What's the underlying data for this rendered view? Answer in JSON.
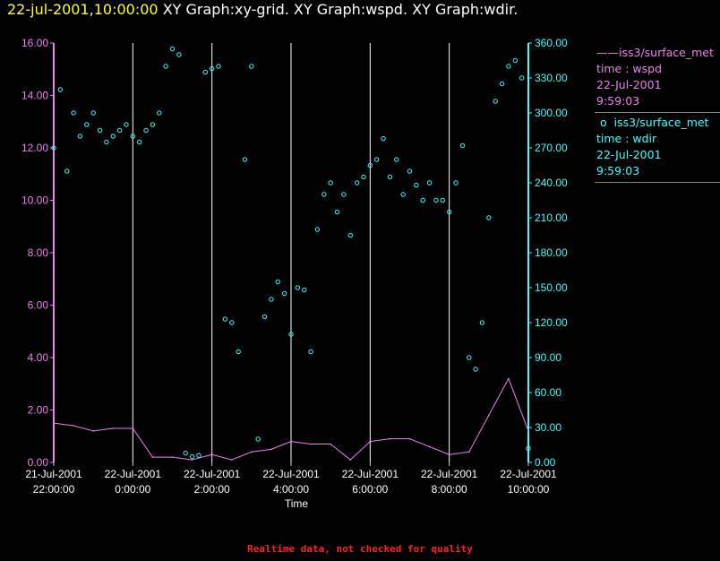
{
  "header": {
    "timestamp": "22-jul-2001,10:00:00",
    "graphs": " XY Graph:xy-grid.  XY Graph:wspd.  XY Graph:wdir."
  },
  "legend": {
    "wspd": {
      "source": "iss3/surface_met",
      "field": "time : wspd",
      "date": "22-Jul-2001",
      "time": "9:59:03"
    },
    "wdir": {
      "source": "iss3/surface_met",
      "field": "time : wdir",
      "date": "22-Jul-2001",
      "time": "9:59:03"
    }
  },
  "footer": "Realtime data, not checked for quality",
  "colors": {
    "wspd": "#ee82ee",
    "wdir": "#40ffff",
    "grid": "#ffffff",
    "timestamp": "#ffff33",
    "warning": "#ff2020"
  },
  "chart_data": {
    "type": "line+scatter",
    "xlabel": "Time",
    "x_range_hours": [
      22,
      34
    ],
    "x_ticks": [
      {
        "date": "21-Jul-2001",
        "time": "22:00:00"
      },
      {
        "date": "22-Jul-2001",
        "time": "0:00:00"
      },
      {
        "date": "22-Jul-2001",
        "time": "2:00:00"
      },
      {
        "date": "22-Jul-2001",
        "time": "4:00:00"
      },
      {
        "date": "22-Jul-2001",
        "time": "6:00:00"
      },
      {
        "date": "22-Jul-2001",
        "time": "8:00:00"
      },
      {
        "date": "22-Jul-2001",
        "time": "10:00:00"
      }
    ],
    "y_left": {
      "range": [
        0,
        16
      ],
      "ticks": [
        "0.00",
        "2.00",
        "4.00",
        "6.00",
        "8.00",
        "10.00",
        "12.00",
        "14.00",
        "16.00"
      ]
    },
    "y_right": {
      "range": [
        0,
        360
      ],
      "ticks": [
        "0.00",
        "30.00",
        "60.00",
        "90.00",
        "120.00",
        "150.00",
        "180.00",
        "210.00",
        "240.00",
        "270.00",
        "300.00",
        "330.00",
        "360.00"
      ]
    },
    "grid": "vertical lines",
    "series": [
      {
        "name": "iss3/surface_met time : wspd",
        "type": "line",
        "axis": "left",
        "x": [
          "21-Jul-2001 22:00",
          "21-Jul-2001 22:30",
          "21-Jul-2001 23:00",
          "21-Jul-2001 23:30",
          "22-Jul-2001 00:00",
          "22-Jul-2001 00:30",
          "22-Jul-2001 01:00",
          "22-Jul-2001 01:30",
          "22-Jul-2001 02:00",
          "22-Jul-2001 02:30",
          "22-Jul-2001 03:00",
          "22-Jul-2001 03:30",
          "22-Jul-2001 04:00",
          "22-Jul-2001 04:30",
          "22-Jul-2001 05:00",
          "22-Jul-2001 05:30",
          "22-Jul-2001 06:00",
          "22-Jul-2001 06:30",
          "22-Jul-2001 07:00",
          "22-Jul-2001 07:30",
          "22-Jul-2001 08:00",
          "22-Jul-2001 08:30",
          "22-Jul-2001 09:00",
          "22-Jul-2001 09:30",
          "22-Jul-2001 10:00"
        ],
        "values": [
          1.5,
          1.4,
          1.2,
          1.3,
          1.3,
          0.2,
          0.2,
          0.1,
          0.3,
          0.1,
          0.4,
          0.5,
          0.8,
          0.7,
          0.7,
          0.1,
          0.8,
          0.9,
          0.9,
          0.6,
          0.3,
          0.4,
          1.8,
          3.2,
          1.2
        ]
      },
      {
        "name": "iss3/surface_met time : wdir",
        "type": "scatter",
        "axis": "right",
        "x": [
          "21-Jul-2001 22:00",
          "21-Jul-2001 22:10",
          "21-Jul-2001 22:20",
          "21-Jul-2001 22:30",
          "21-Jul-2001 22:40",
          "21-Jul-2001 22:50",
          "21-Jul-2001 23:00",
          "21-Jul-2001 23:10",
          "21-Jul-2001 23:20",
          "21-Jul-2001 23:30",
          "21-Jul-2001 23:40",
          "21-Jul-2001 23:50",
          "22-Jul-2001 00:00",
          "22-Jul-2001 00:10",
          "22-Jul-2001 00:20",
          "22-Jul-2001 00:30",
          "22-Jul-2001 00:40",
          "22-Jul-2001 00:50",
          "22-Jul-2001 01:00",
          "22-Jul-2001 01:10",
          "22-Jul-2001 01:20",
          "22-Jul-2001 01:30",
          "22-Jul-2001 01:40",
          "22-Jul-2001 01:50",
          "22-Jul-2001 02:00",
          "22-Jul-2001 02:10",
          "22-Jul-2001 02:20",
          "22-Jul-2001 02:30",
          "22-Jul-2001 02:40",
          "22-Jul-2001 02:50",
          "22-Jul-2001 03:00",
          "22-Jul-2001 03:10",
          "22-Jul-2001 03:20",
          "22-Jul-2001 03:30",
          "22-Jul-2001 03:40",
          "22-Jul-2001 03:50",
          "22-Jul-2001 04:00",
          "22-Jul-2001 04:10",
          "22-Jul-2001 04:20",
          "22-Jul-2001 04:30",
          "22-Jul-2001 04:40",
          "22-Jul-2001 04:50",
          "22-Jul-2001 05:00",
          "22-Jul-2001 05:10",
          "22-Jul-2001 05:20",
          "22-Jul-2001 05:30",
          "22-Jul-2001 05:40",
          "22-Jul-2001 05:50",
          "22-Jul-2001 06:00",
          "22-Jul-2001 06:10",
          "22-Jul-2001 06:20",
          "22-Jul-2001 06:30",
          "22-Jul-2001 06:40",
          "22-Jul-2001 06:50",
          "22-Jul-2001 07:00",
          "22-Jul-2001 07:10",
          "22-Jul-2001 07:20",
          "22-Jul-2001 07:30",
          "22-Jul-2001 07:40",
          "22-Jul-2001 07:50",
          "22-Jul-2001 08:00",
          "22-Jul-2001 08:10",
          "22-Jul-2001 08:20",
          "22-Jul-2001 08:30",
          "22-Jul-2001 08:40",
          "22-Jul-2001 08:50",
          "22-Jul-2001 09:00",
          "22-Jul-2001 09:10",
          "22-Jul-2001 09:20",
          "22-Jul-2001 09:30",
          "22-Jul-2001 09:40",
          "22-Jul-2001 09:50",
          "22-Jul-2001 10:00"
        ],
        "values": [
          270,
          320,
          250,
          300,
          280,
          290,
          300,
          285,
          275,
          280,
          285,
          290,
          280,
          275,
          285,
          290,
          300,
          340,
          355,
          350,
          8,
          5,
          6,
          335,
          338,
          340,
          123,
          120,
          95,
          260,
          340,
          20,
          125,
          140,
          155,
          145,
          110,
          150,
          148,
          95,
          200,
          230,
          240,
          215,
          230,
          195,
          240,
          245,
          255,
          260,
          278,
          245,
          260,
          230,
          250,
          238,
          225,
          240,
          225,
          225,
          215,
          240,
          272,
          90,
          80,
          120,
          210,
          310,
          325,
          340,
          345,
          330,
          12
        ]
      }
    ]
  }
}
